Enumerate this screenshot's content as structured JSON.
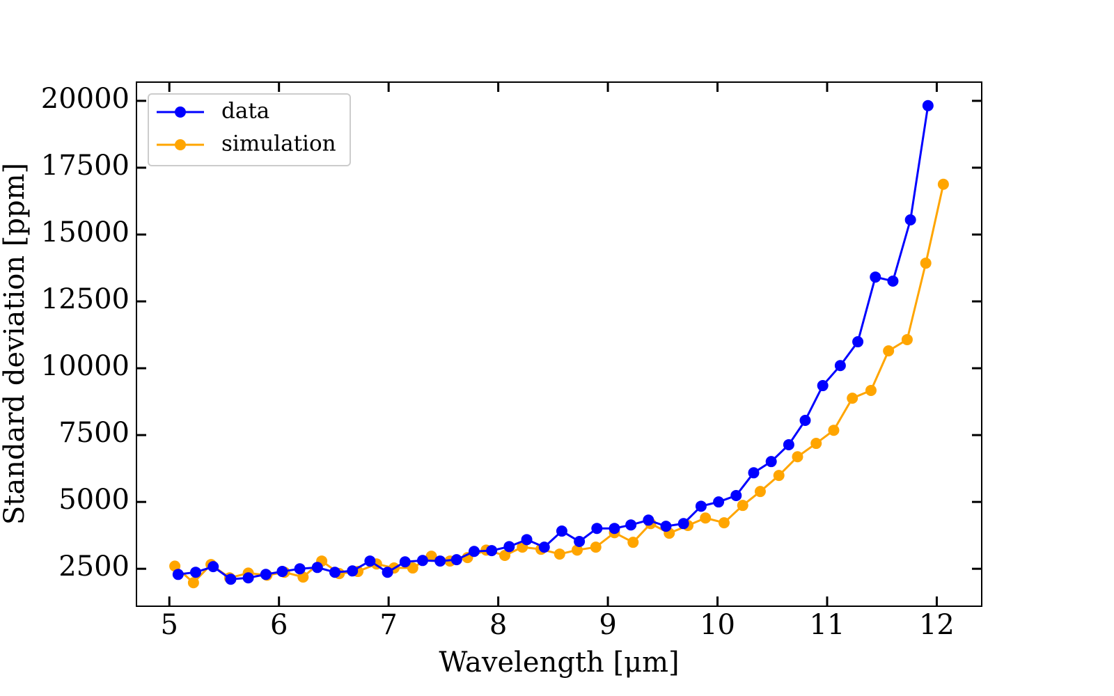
{
  "chart_data": {
    "type": "line",
    "xlabel": "Wavelength [μm]",
    "ylabel": "Standard deviation [ppm]",
    "xlim": [
      4.7,
      12.41
    ],
    "xticks": [
      5,
      6,
      7,
      8,
      9,
      10,
      11,
      12
    ],
    "ylim": [
      1100,
      20700
    ],
    "yticks": [
      2500,
      5000,
      7500,
      10000,
      12500,
      15000,
      17500,
      20000
    ],
    "legend": "upper left",
    "grid": false,
    "series": [
      {
        "name": "data",
        "color": "#0000ff",
        "x": [
          5.08,
          5.24,
          5.4,
          5.56,
          5.72,
          5.88,
          6.03,
          6.19,
          6.35,
          6.51,
          6.67,
          6.83,
          6.99,
          7.15,
          7.31,
          7.47,
          7.62,
          7.78,
          7.94,
          8.1,
          8.26,
          8.42,
          8.58,
          8.74,
          8.9,
          9.06,
          9.21,
          9.37,
          9.53,
          9.69,
          9.85,
          10.01,
          10.17,
          10.33,
          10.49,
          10.65,
          10.8,
          10.96,
          11.12,
          11.28,
          11.44,
          11.6,
          11.76,
          11.92
        ],
        "values": [
          2290,
          2370,
          2580,
          2110,
          2160,
          2290,
          2400,
          2500,
          2550,
          2370,
          2420,
          2790,
          2370,
          2760,
          2810,
          2790,
          2840,
          3150,
          3180,
          3330,
          3590,
          3310,
          3910,
          3520,
          4010,
          4010,
          4140,
          4320,
          4090,
          4190,
          4840,
          5000,
          5240,
          6090,
          6510,
          7140,
          8050,
          9350,
          10100,
          10990,
          13410,
          13260,
          15550,
          19820
        ]
      },
      {
        "name": "simulation",
        "color": "#ffa500",
        "x": [
          5.05,
          5.22,
          5.38,
          5.55,
          5.72,
          5.89,
          6.05,
          6.22,
          6.39,
          6.55,
          6.72,
          6.89,
          7.05,
          7.22,
          7.39,
          7.56,
          7.72,
          7.89,
          8.06,
          8.22,
          8.39,
          8.56,
          8.72,
          8.89,
          9.06,
          9.23,
          9.39,
          9.56,
          9.73,
          9.89,
          10.06,
          10.23,
          10.39,
          10.56,
          10.73,
          10.9,
          11.06,
          11.23,
          11.4,
          11.56,
          11.73,
          11.9,
          12.06
        ],
        "values": [
          2600,
          1980,
          2660,
          2160,
          2340,
          2260,
          2370,
          2190,
          2790,
          2320,
          2400,
          2680,
          2530,
          2530,
          2970,
          2790,
          2920,
          3200,
          3000,
          3310,
          3230,
          3050,
          3200,
          3310,
          3850,
          3490,
          4190,
          3830,
          4120,
          4400,
          4220,
          4870,
          5390,
          5990,
          6690,
          7190,
          7680,
          8880,
          9170,
          10650,
          11070,
          13930,
          16880
        ]
      }
    ]
  }
}
